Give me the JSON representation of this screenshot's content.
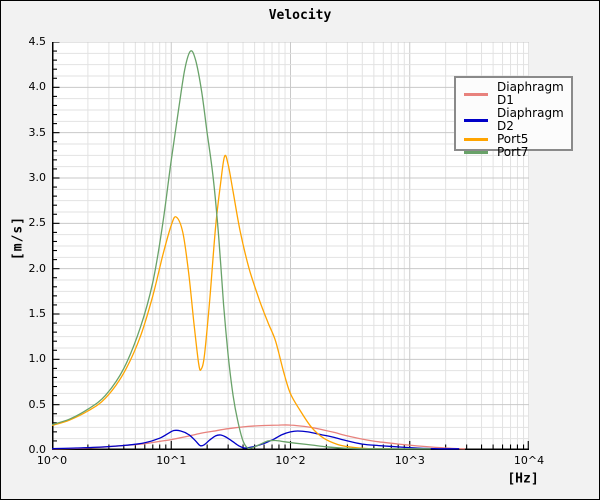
{
  "title": "Velocity",
  "axes": {
    "x": {
      "label": "[Hz]",
      "scale": "log",
      "range": [
        1,
        10000
      ],
      "ticks": [
        "10^0",
        "10^1",
        "10^2",
        "10^3",
        "10^4"
      ]
    },
    "y": {
      "label": "[m/s]",
      "scale": "linear",
      "range": [
        0,
        4.5
      ],
      "ticks": [
        "0.0",
        "0.5",
        "1.0",
        "1.5",
        "2.0",
        "2.5",
        "3.0",
        "3.5",
        "4.0",
        "4.5"
      ]
    }
  },
  "chart_data": {
    "type": "line",
    "title": "Velocity",
    "xlabel": "[Hz]",
    "ylabel": "[m/s]",
    "xscale": "log",
    "xlim": [
      1,
      10000
    ],
    "ylim": [
      0,
      4.5
    ],
    "grid": true,
    "legend_position": "upper right",
    "series": [
      {
        "name": "Diaphragm D1",
        "color": "#e8827d",
        "points": [
          [
            1,
            0.01
          ],
          [
            1.6,
            0.018
          ],
          [
            2.5,
            0.03
          ],
          [
            4,
            0.05
          ],
          [
            6,
            0.07
          ],
          [
            8,
            0.095
          ],
          [
            10,
            0.115
          ],
          [
            13,
            0.145
          ],
          [
            17,
            0.18
          ],
          [
            22,
            0.205
          ],
          [
            30,
            0.235
          ],
          [
            44,
            0.26
          ],
          [
            60,
            0.27
          ],
          [
            80,
            0.275
          ],
          [
            100,
            0.275
          ],
          [
            130,
            0.26
          ],
          [
            170,
            0.235
          ],
          [
            230,
            0.195
          ],
          [
            300,
            0.155
          ],
          [
            400,
            0.12
          ],
          [
            550,
            0.09
          ],
          [
            850,
            0.062
          ],
          [
            1300,
            0.04
          ],
          [
            2000,
            0.022
          ],
          [
            2900,
            0.012
          ]
        ]
      },
      {
        "name": "Diaphragm D2",
        "color": "#0000c8",
        "points": [
          [
            1,
            0.015
          ],
          [
            1.6,
            0.022
          ],
          [
            2.5,
            0.032
          ],
          [
            4,
            0.05
          ],
          [
            6,
            0.08
          ],
          [
            8,
            0.13
          ],
          [
            9.5,
            0.185
          ],
          [
            10.5,
            0.215
          ],
          [
            12,
            0.21
          ],
          [
            14,
            0.17
          ],
          [
            16,
            0.1
          ],
          [
            17.5,
            0.048
          ],
          [
            19,
            0.06
          ],
          [
            21,
            0.11
          ],
          [
            23.5,
            0.155
          ],
          [
            26,
            0.165
          ],
          [
            29,
            0.14
          ],
          [
            33,
            0.09
          ],
          [
            37,
            0.045
          ],
          [
            41,
            0.022
          ],
          [
            46,
            0.03
          ],
          [
            55,
            0.055
          ],
          [
            70,
            0.11
          ],
          [
            85,
            0.17
          ],
          [
            100,
            0.2
          ],
          [
            115,
            0.21
          ],
          [
            140,
            0.2
          ],
          [
            180,
            0.17
          ],
          [
            230,
            0.14
          ],
          [
            300,
            0.1
          ],
          [
            400,
            0.065
          ],
          [
            550,
            0.048
          ],
          [
            850,
            0.032
          ],
          [
            1300,
            0.018
          ],
          [
            2000,
            0.01
          ],
          [
            2600,
            0.006
          ]
        ]
      },
      {
        "name": "Port5",
        "color": "#ffa400",
        "points": [
          [
            1,
            0.27
          ],
          [
            1.4,
            0.33
          ],
          [
            2,
            0.43
          ],
          [
            2.8,
            0.57
          ],
          [
            4,
            0.85
          ],
          [
            5.5,
            1.25
          ],
          [
            7,
            1.7
          ],
          [
            8.5,
            2.15
          ],
          [
            10,
            2.48
          ],
          [
            11,
            2.57
          ],
          [
            12.5,
            2.4
          ],
          [
            14,
            1.95
          ],
          [
            15.5,
            1.4
          ],
          [
            17,
            0.95
          ],
          [
            17.8,
            0.89
          ],
          [
            19,
            1.05
          ],
          [
            21,
            1.65
          ],
          [
            23.5,
            2.45
          ],
          [
            26,
            2.95
          ],
          [
            28,
            3.24
          ],
          [
            30,
            3.15
          ],
          [
            33,
            2.85
          ],
          [
            38,
            2.4
          ],
          [
            45,
            2.0
          ],
          [
            55,
            1.65
          ],
          [
            65,
            1.4
          ],
          [
            75,
            1.2
          ],
          [
            88,
            0.85
          ],
          [
            100,
            0.62
          ],
          [
            120,
            0.44
          ],
          [
            150,
            0.25
          ],
          [
            190,
            0.13
          ],
          [
            250,
            0.06
          ],
          [
            330,
            0.03
          ],
          [
            450,
            0.015
          ],
          [
            700,
            0.008
          ]
        ]
      },
      {
        "name": "Port7",
        "color": "#69a269",
        "points": [
          [
            1,
            0.28
          ],
          [
            1.4,
            0.34
          ],
          [
            2,
            0.45
          ],
          [
            2.8,
            0.6
          ],
          [
            4,
            0.9
          ],
          [
            5.5,
            1.35
          ],
          [
            7,
            1.85
          ],
          [
            8.5,
            2.5
          ],
          [
            10,
            3.2
          ],
          [
            11.5,
            3.75
          ],
          [
            13,
            4.2
          ],
          [
            14.5,
            4.4
          ],
          [
            16,
            4.3
          ],
          [
            18,
            3.95
          ],
          [
            20,
            3.5
          ],
          [
            22.5,
            3.0
          ],
          [
            25,
            2.35
          ],
          [
            27.5,
            1.6
          ],
          [
            30,
            1.05
          ],
          [
            33,
            0.6
          ],
          [
            36,
            0.33
          ],
          [
            40,
            0.1
          ],
          [
            44,
            0.02
          ],
          [
            50,
            0.035
          ],
          [
            57,
            0.07
          ],
          [
            65,
            0.1
          ],
          [
            75,
            0.105
          ],
          [
            90,
            0.09
          ],
          [
            110,
            0.075
          ],
          [
            150,
            0.055
          ],
          [
            200,
            0.035
          ],
          [
            280,
            0.02
          ],
          [
            400,
            0.012
          ],
          [
            700,
            0.006
          ],
          [
            1500,
            0.003
          ]
        ]
      }
    ]
  }
}
